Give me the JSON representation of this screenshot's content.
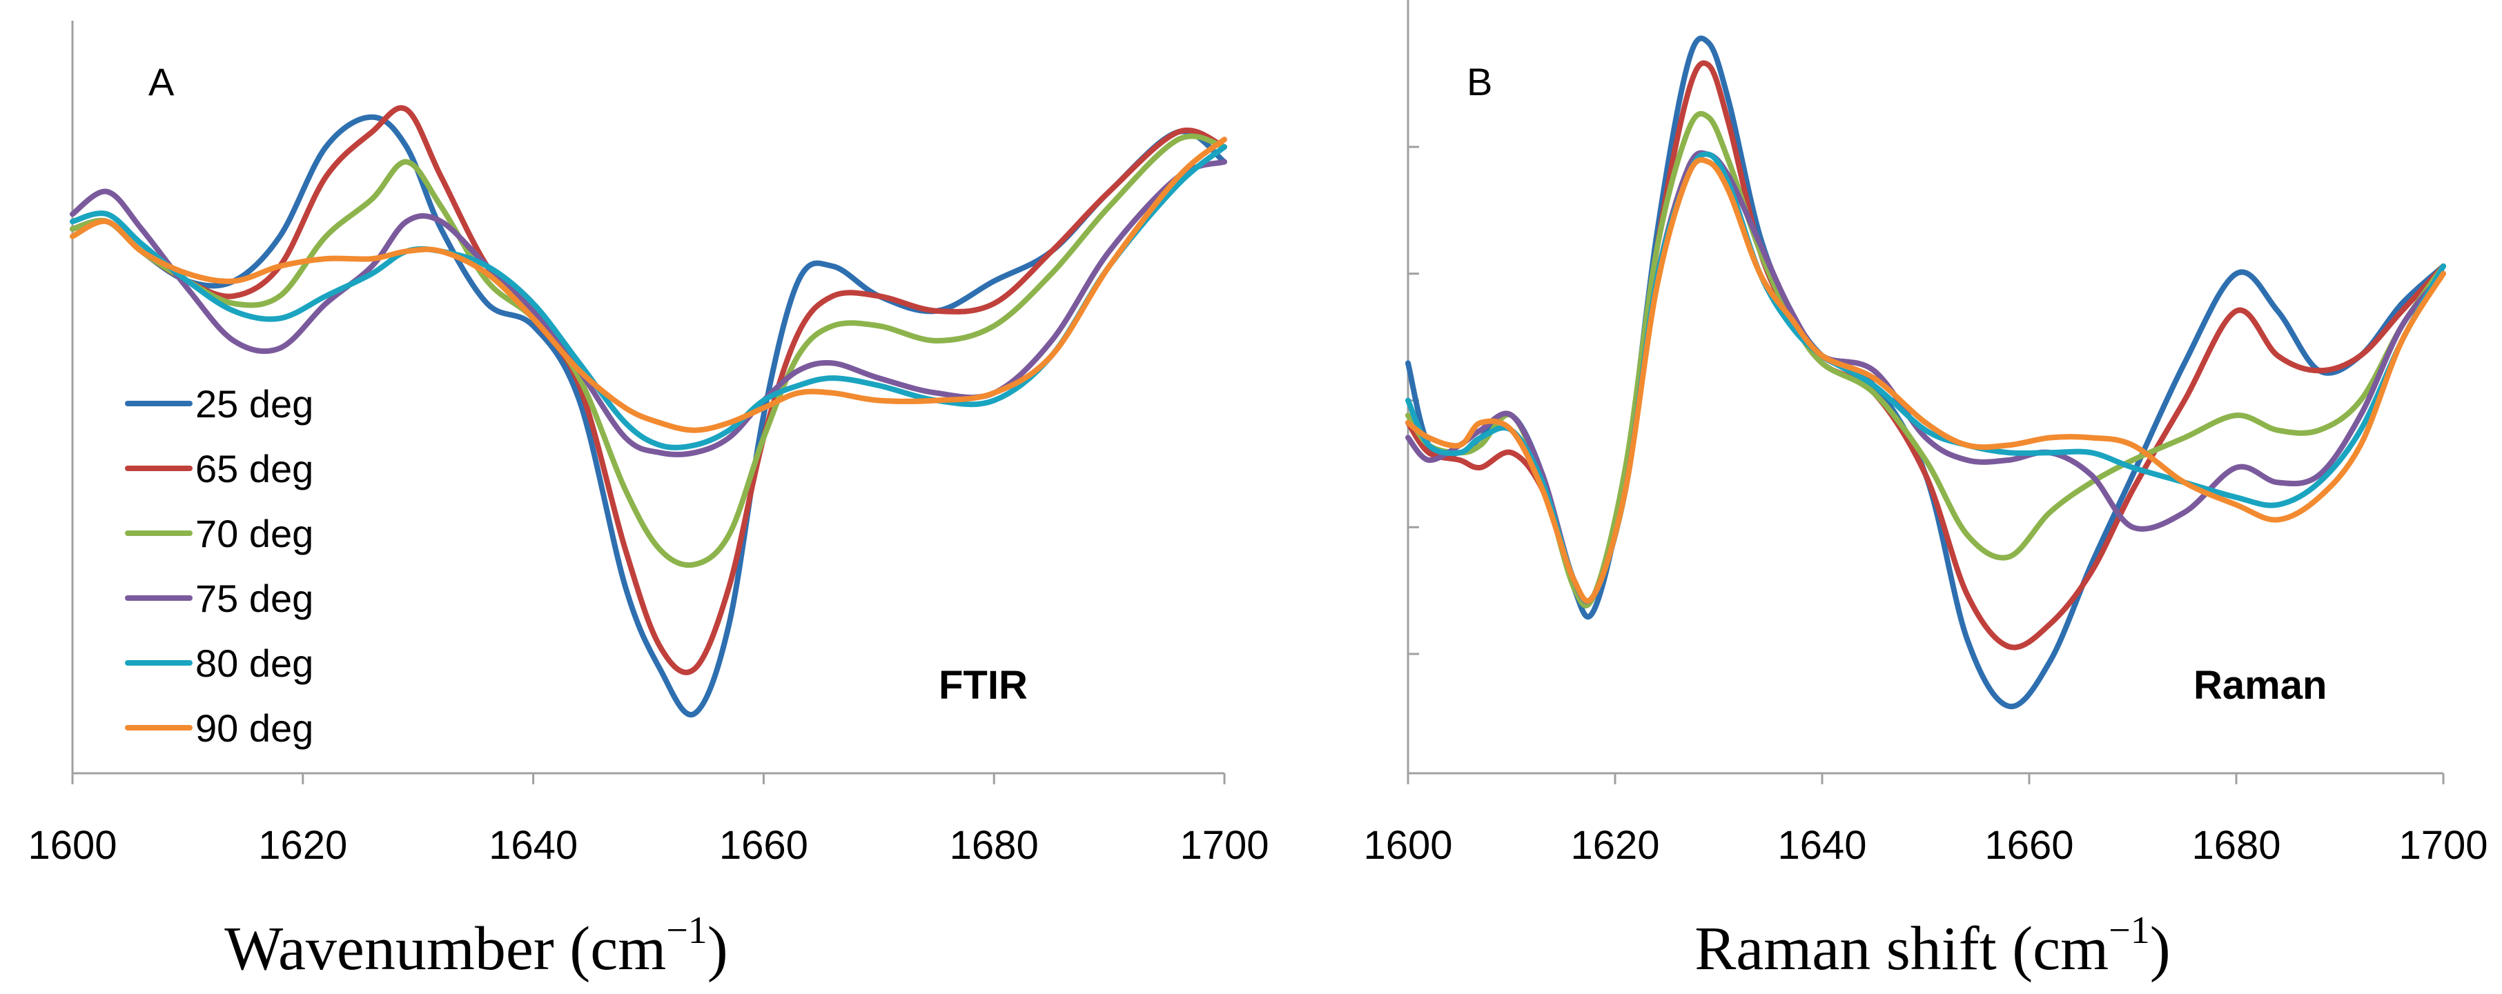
{
  "chart_data": [
    {
      "type": "line",
      "panel": "A",
      "method": "FTIR",
      "xlabel_base": "Wavenumber (cm",
      "xlabel_sup": "−1",
      "xlabel_close": ")",
      "xlim": [
        1600,
        1700
      ],
      "ylim": [
        0,
        1
      ],
      "x_ticks": [
        "1600",
        "1620",
        "1640",
        "1660",
        "1680",
        "1700"
      ],
      "x_tick_values": [
        1600,
        1620,
        1640,
        1660,
        1680,
        1700
      ],
      "y_ticks": [],
      "legend": [
        "25 deg",
        "65 deg",
        "70 deg",
        "75 deg",
        "80 deg",
        "90 deg"
      ],
      "legend_position": "left-middle",
      "x": [
        1600,
        1603,
        1606,
        1610,
        1614,
        1618,
        1622,
        1626,
        1629,
        1632,
        1636,
        1640,
        1644,
        1648,
        1651,
        1654,
        1657,
        1660,
        1663,
        1666,
        1670,
        1675,
        1680,
        1685,
        1690,
        1696,
        1700
      ],
      "series": [
        {
          "name": "25 deg",
          "color": "#2e6fb0",
          "values": [
            0.73,
            0.74,
            0.7,
            0.66,
            0.66,
            0.72,
            0.84,
            0.88,
            0.84,
            0.73,
            0.63,
            0.6,
            0.5,
            0.25,
            0.14,
            0.08,
            0.2,
            0.48,
            0.66,
            0.68,
            0.64,
            0.62,
            0.66,
            0.7,
            0.78,
            0.86,
            0.82
          ]
        },
        {
          "name": "65 deg",
          "color": "#c0403c",
          "values": [
            0.73,
            0.74,
            0.7,
            0.66,
            0.64,
            0.68,
            0.8,
            0.86,
            0.89,
            0.8,
            0.68,
            0.61,
            0.52,
            0.3,
            0.17,
            0.14,
            0.25,
            0.45,
            0.59,
            0.64,
            0.64,
            0.62,
            0.63,
            0.7,
            0.78,
            0.86,
            0.84
          ]
        },
        {
          "name": "70 deg",
          "color": "#8db44c",
          "values": [
            0.73,
            0.74,
            0.7,
            0.66,
            0.63,
            0.64,
            0.72,
            0.77,
            0.82,
            0.76,
            0.66,
            0.61,
            0.53,
            0.38,
            0.3,
            0.28,
            0.32,
            0.45,
            0.56,
            0.6,
            0.6,
            0.58,
            0.6,
            0.67,
            0.76,
            0.85,
            0.84
          ]
        },
        {
          "name": "75 deg",
          "color": "#7a5a9c",
          "values": [
            0.75,
            0.78,
            0.73,
            0.65,
            0.58,
            0.57,
            0.63,
            0.68,
            0.74,
            0.74,
            0.68,
            0.62,
            0.54,
            0.45,
            0.43,
            0.43,
            0.45,
            0.5,
            0.54,
            0.55,
            0.53,
            0.51,
            0.51,
            0.58,
            0.7,
            0.8,
            0.82
          ]
        },
        {
          "name": "80 deg",
          "color": "#1aa4c0",
          "values": [
            0.74,
            0.75,
            0.71,
            0.66,
            0.62,
            0.61,
            0.64,
            0.67,
            0.7,
            0.7,
            0.68,
            0.63,
            0.55,
            0.47,
            0.44,
            0.44,
            0.46,
            0.5,
            0.52,
            0.53,
            0.52,
            0.5,
            0.5,
            0.56,
            0.68,
            0.79,
            0.84
          ]
        },
        {
          "name": "90 deg",
          "color": "#f28a30",
          "values": [
            0.72,
            0.74,
            0.7,
            0.67,
            0.66,
            0.68,
            0.69,
            0.69,
            0.7,
            0.7,
            0.67,
            0.61,
            0.54,
            0.49,
            0.47,
            0.46,
            0.47,
            0.49,
            0.51,
            0.51,
            0.5,
            0.5,
            0.51,
            0.56,
            0.68,
            0.8,
            0.85
          ]
        }
      ]
    },
    {
      "type": "line",
      "panel": "B",
      "method": "Raman",
      "xlabel_base": "Raman shift (cm",
      "xlabel_sup": "−1",
      "xlabel_close": ")",
      "xlim": [
        1600,
        1700
      ],
      "ylim": [
        0,
        1
      ],
      "x_ticks": [
        "1600",
        "1620",
        "1640",
        "1660",
        "1680",
        "1700"
      ],
      "x_tick_values": [
        1600,
        1620,
        1640,
        1660,
        1680,
        1700
      ],
      "y_ticks": [
        0.16,
        0.33,
        0.5,
        0.67,
        0.84
      ],
      "legend": [],
      "x": [
        1600,
        1602,
        1605,
        1607,
        1610,
        1613,
        1616,
        1618,
        1621,
        1624,
        1627,
        1629,
        1631,
        1634,
        1637,
        1640,
        1645,
        1650,
        1654,
        1658,
        1662,
        1666,
        1670,
        1675,
        1680,
        1684,
        1688,
        1692,
        1696,
        1700
      ],
      "series": [
        {
          "name": "25 deg",
          "color": "#2e6fb0",
          "values": [
            0.55,
            0.44,
            0.43,
            0.45,
            0.48,
            0.4,
            0.25,
            0.22,
            0.4,
            0.72,
            0.95,
            0.98,
            0.9,
            0.72,
            0.62,
            0.56,
            0.52,
            0.4,
            0.18,
            0.09,
            0.15,
            0.28,
            0.4,
            0.55,
            0.67,
            0.62,
            0.54,
            0.56,
            0.63,
            0.68
          ]
        },
        {
          "name": "65 deg",
          "color": "#c0403c",
          "values": [
            0.47,
            0.43,
            0.42,
            0.41,
            0.43,
            0.38,
            0.26,
            0.24,
            0.4,
            0.7,
            0.91,
            0.95,
            0.87,
            0.7,
            0.61,
            0.55,
            0.51,
            0.4,
            0.24,
            0.17,
            0.2,
            0.27,
            0.38,
            0.5,
            0.62,
            0.56,
            0.54,
            0.56,
            0.62,
            0.68
          ]
        },
        {
          "name": "70 deg",
          "color": "#8db44c",
          "values": [
            0.48,
            0.44,
            0.43,
            0.44,
            0.48,
            0.39,
            0.25,
            0.24,
            0.41,
            0.7,
            0.86,
            0.88,
            0.82,
            0.7,
            0.61,
            0.55,
            0.51,
            0.42,
            0.32,
            0.29,
            0.35,
            0.39,
            0.42,
            0.45,
            0.48,
            0.46,
            0.46,
            0.5,
            0.6,
            0.68
          ]
        },
        {
          "name": "75 deg",
          "color": "#7a5a9c",
          "values": [
            0.45,
            0.42,
            0.44,
            0.46,
            0.48,
            0.4,
            0.26,
            0.24,
            0.38,
            0.66,
            0.81,
            0.83,
            0.8,
            0.71,
            0.62,
            0.56,
            0.54,
            0.45,
            0.42,
            0.42,
            0.43,
            0.4,
            0.33,
            0.35,
            0.41,
            0.39,
            0.4,
            0.48,
            0.6,
            0.67
          ]
        },
        {
          "name": "80 deg",
          "color": "#1aa4c0",
          "values": [
            0.5,
            0.44,
            0.43,
            0.45,
            0.46,
            0.39,
            0.26,
            0.24,
            0.38,
            0.66,
            0.8,
            0.83,
            0.79,
            0.67,
            0.6,
            0.56,
            0.52,
            0.46,
            0.44,
            0.43,
            0.43,
            0.43,
            0.41,
            0.39,
            0.37,
            0.36,
            0.39,
            0.46,
            0.58,
            0.68
          ]
        },
        {
          "name": "90 deg",
          "color": "#f28a30",
          "values": [
            0.47,
            0.45,
            0.44,
            0.47,
            0.46,
            0.38,
            0.26,
            0.24,
            0.38,
            0.65,
            0.8,
            0.82,
            0.78,
            0.67,
            0.61,
            0.56,
            0.53,
            0.47,
            0.44,
            0.44,
            0.45,
            0.45,
            0.44,
            0.39,
            0.36,
            0.34,
            0.37,
            0.44,
            0.58,
            0.67
          ]
        }
      ]
    }
  ]
}
